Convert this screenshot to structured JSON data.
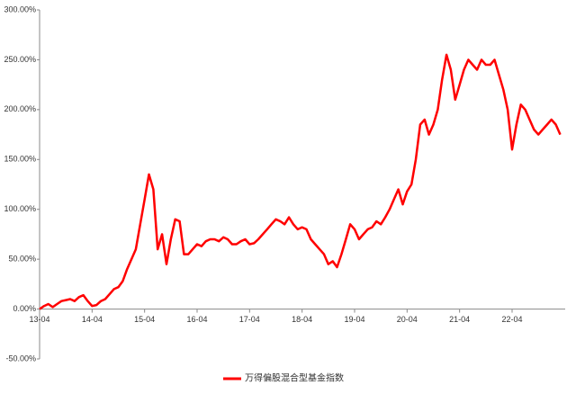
{
  "chart_data": {
    "type": "line",
    "x": [
      "13-04",
      "13-05",
      "13-06",
      "13-07",
      "13-08",
      "13-09",
      "13-10",
      "13-11",
      "13-12",
      "14-01",
      "14-02",
      "14-03",
      "14-04",
      "14-05",
      "14-06",
      "14-07",
      "14-08",
      "14-09",
      "14-10",
      "14-11",
      "14-12",
      "15-01",
      "15-02",
      "15-03",
      "15-04",
      "15-05",
      "15-06",
      "15-07",
      "15-08",
      "15-09",
      "15-10",
      "15-11",
      "15-12",
      "16-01",
      "16-02",
      "16-03",
      "16-04",
      "16-05",
      "16-06",
      "16-07",
      "16-08",
      "16-09",
      "16-10",
      "16-11",
      "16-12",
      "17-01",
      "17-02",
      "17-03",
      "17-04",
      "17-05",
      "17-06",
      "17-07",
      "17-08",
      "17-09",
      "17-10",
      "17-11",
      "17-12",
      "18-01",
      "18-02",
      "18-03",
      "18-04",
      "18-05",
      "18-06",
      "18-07",
      "18-08",
      "18-09",
      "18-10",
      "18-11",
      "18-12",
      "19-01",
      "19-02",
      "19-03",
      "19-04",
      "19-05",
      "19-06",
      "19-07",
      "19-08",
      "19-09",
      "19-10",
      "19-11",
      "19-12",
      "20-01",
      "20-02",
      "20-03",
      "20-04",
      "20-05",
      "20-06",
      "20-07",
      "20-08",
      "20-09",
      "20-10",
      "20-11",
      "20-12",
      "21-01",
      "21-02",
      "21-03",
      "21-04",
      "21-05",
      "21-06",
      "21-07",
      "21-08",
      "21-09",
      "21-10",
      "21-11",
      "21-12",
      "22-01",
      "22-02",
      "22-03",
      "22-04",
      "22-05",
      "22-06",
      "22-07",
      "22-08",
      "22-09",
      "22-10",
      "22-11",
      "22-12",
      "23-01",
      "23-02",
      "23-03"
    ],
    "series": [
      {
        "name": "万得偏股混合型基金指数",
        "color": "#ff0000",
        "values": [
          0,
          3,
          5,
          2,
          5,
          8,
          9,
          10,
          8,
          12,
          14,
          8,
          3,
          4,
          8,
          10,
          15,
          20,
          22,
          28,
          40,
          50,
          60,
          85,
          110,
          135,
          120,
          60,
          75,
          45,
          70,
          90,
          88,
          55,
          55,
          60,
          65,
          63,
          68,
          70,
          70,
          68,
          72,
          70,
          65,
          65,
          68,
          70,
          65,
          66,
          70,
          75,
          80,
          85,
          90,
          88,
          85,
          92,
          85,
          80,
          82,
          80,
          70,
          65,
          60,
          55,
          45,
          48,
          42,
          55,
          70,
          85,
          80,
          70,
          75,
          80,
          82,
          88,
          85,
          92,
          100,
          110,
          120,
          105,
          118,
          125,
          150,
          185,
          190,
          175,
          185,
          200,
          230,
          255,
          240,
          210,
          225,
          240,
          250,
          245,
          240,
          250,
          245,
          245,
          250,
          235,
          220,
          200,
          160,
          185,
          205,
          200,
          190,
          180,
          175,
          180,
          185,
          190,
          185,
          175
        ]
      }
    ],
    "xticks": [
      "13-04",
      "14-04",
      "15-04",
      "16-04",
      "17-04",
      "18-04",
      "19-04",
      "20-04",
      "21-04",
      "22-04"
    ],
    "ylim": [
      -50,
      300
    ],
    "yticks": [
      {
        "value": -50,
        "label": "-50.00%"
      },
      {
        "value": 0,
        "label": "0.00%"
      },
      {
        "value": 50,
        "label": "50.00%"
      },
      {
        "value": 100,
        "label": "100.00%"
      },
      {
        "value": 150,
        "label": "150.00%"
      },
      {
        "value": 200,
        "label": "200.00%"
      },
      {
        "value": 250,
        "label": "250.00%"
      },
      {
        "value": 300,
        "label": "300.00%"
      }
    ],
    "legend": "bottom"
  }
}
